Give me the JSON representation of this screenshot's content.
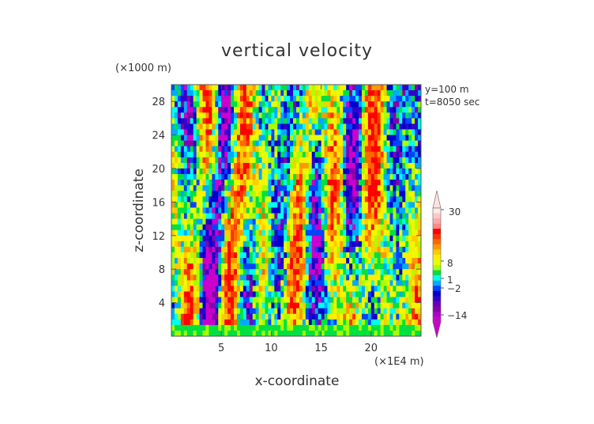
{
  "chart_data": {
    "type": "heatmap",
    "title": "vertical velocity",
    "xlabel": "x-coordinate",
    "ylabel": "z-coordinate",
    "x_unit": "(×1E4 m)",
    "y_unit": "(×1000 m)",
    "annotations": [
      "y=100 m",
      "t=8050 sec"
    ],
    "xlim": [
      0,
      25
    ],
    "ylim": [
      0,
      30
    ],
    "x_ticks": [
      5,
      10,
      15,
      20
    ],
    "y_ticks": [
      4,
      8,
      12,
      16,
      20,
      24,
      28
    ],
    "colorbar": {
      "labels": [
        "30",
        "8",
        "1",
        "−2",
        "−14"
      ],
      "colors": [
        "#ffe8e8",
        "#ffc8c8",
        "#ffa8a8",
        "#ff8888",
        "#ff0000",
        "#ff3300",
        "#ff6600",
        "#ff9900",
        "#ffcc00",
        "#ffee00",
        "#e6ff00",
        "#aaff00",
        "#00e040",
        "#00ffee",
        "#00aaff",
        "#0044ff",
        "#0000cc",
        "#3300cc",
        "#6600bb",
        "#8800aa",
        "#aa00cc",
        "#cc00cc"
      ],
      "top_color": "#ffe0e0",
      "bottom_color": "#cc00cc"
    }
  }
}
